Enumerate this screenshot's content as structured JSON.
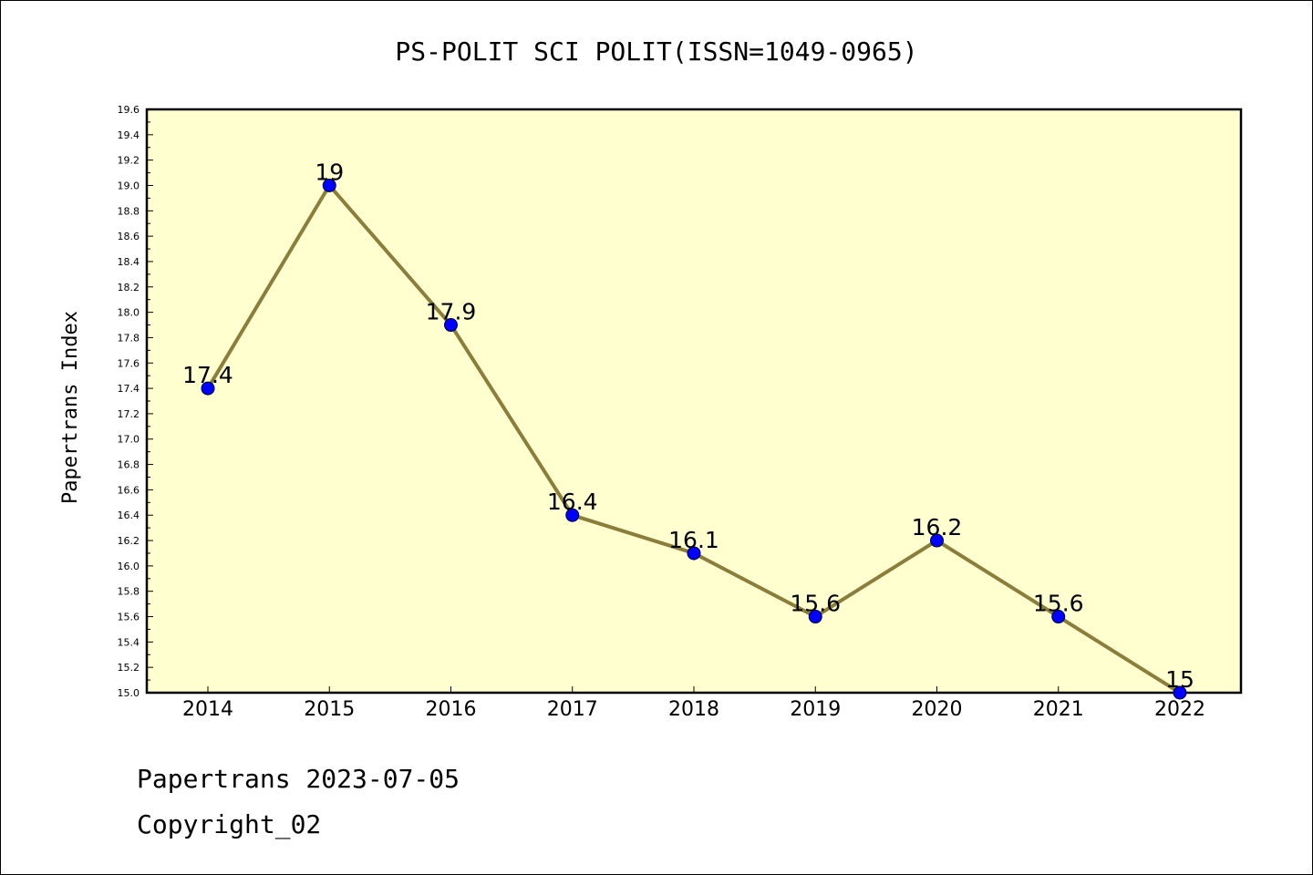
{
  "chart_data": {
    "type": "line",
    "title": "PS-POLIT SCI POLIT(ISSN=1049-0965)",
    "xlabel": "",
    "ylabel": "Papertrans Index",
    "categories": [
      "2014",
      "2015",
      "2016",
      "2017",
      "2018",
      "2019",
      "2020",
      "2021",
      "2022"
    ],
    "values": [
      17.4,
      19,
      17.9,
      16.4,
      16.1,
      15.6,
      16.2,
      15.6,
      15
    ],
    "data_labels": [
      "17.4",
      "19",
      "17.9",
      "16.4",
      "16.1",
      "15.6",
      "16.2",
      "15.6",
      "15"
    ],
    "ylim": [
      15.0,
      19.6
    ],
    "yticks": [
      "15.0",
      "15.2",
      "15.4",
      "15.6",
      "15.8",
      "16.0",
      "16.2",
      "16.4",
      "16.6",
      "16.8",
      "17.0",
      "17.2",
      "17.4",
      "17.6",
      "17.8",
      "18.0",
      "18.2",
      "18.4",
      "18.6",
      "18.8",
      "19.0",
      "19.2",
      "19.4",
      "19.6"
    ],
    "grid": false,
    "colors": {
      "line": "#8B7D3A",
      "marker": "#0000FF",
      "plot_background": "#FFFFD0"
    }
  },
  "footer": {
    "line1": "Papertrans 2023-07-05",
    "line2": "Copyright_02"
  }
}
